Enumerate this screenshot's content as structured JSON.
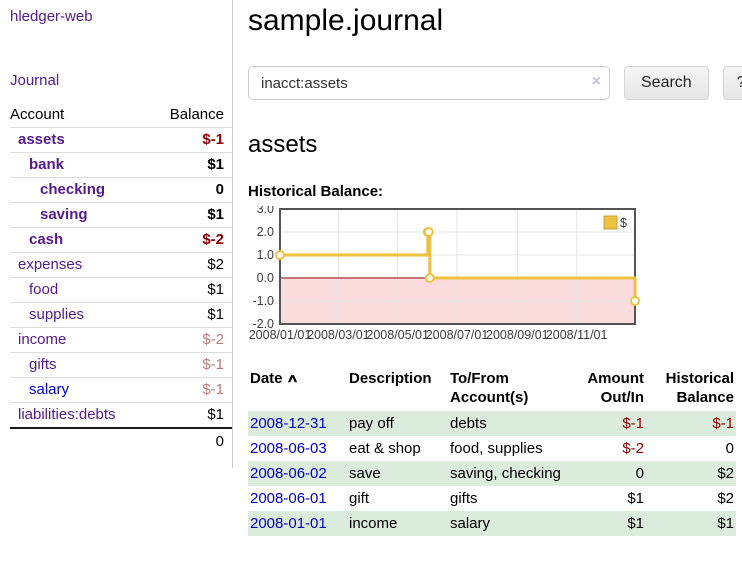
{
  "sidebar": {
    "app_title": "hledger-web",
    "journal_label": "Journal",
    "accounts_table": {
      "headers": {
        "account": "Account",
        "balance": "Balance"
      },
      "rows": [
        {
          "name": "assets",
          "balance": "$-1",
          "depth": 1,
          "bold": true,
          "link_color": "purple"
        },
        {
          "name": "bank",
          "balance": "$1",
          "depth": 2,
          "bold": true,
          "link_color": "purple"
        },
        {
          "name": "checking",
          "balance": "0",
          "depth": 3,
          "bold": true,
          "link_color": "purple"
        },
        {
          "name": "saving",
          "balance": "$1",
          "depth": 3,
          "bold": true,
          "link_color": "purple"
        },
        {
          "name": "cash",
          "balance": "$-2",
          "depth": 2,
          "bold": true,
          "link_color": "purple"
        },
        {
          "name": "expenses",
          "balance": "$2",
          "depth": 1,
          "bold": false,
          "link_color": "purple"
        },
        {
          "name": "food",
          "balance": "$1",
          "depth": 2,
          "bold": false,
          "link_color": "purple"
        },
        {
          "name": "supplies",
          "balance": "$1",
          "depth": 2,
          "bold": false,
          "link_color": "purple"
        },
        {
          "name": "income",
          "balance": "$-2",
          "depth": 1,
          "bold": false,
          "link_color": "purple"
        },
        {
          "name": "gifts",
          "balance": "$-1",
          "depth": 2,
          "bold": false,
          "link_color": "purple"
        },
        {
          "name": "salary",
          "balance": "$-1",
          "depth": 2,
          "bold": false,
          "link_color": "blue"
        },
        {
          "name": "liabilities:debts",
          "balance": "$1",
          "depth": 1,
          "bold": false,
          "link_color": "purple"
        }
      ],
      "total": "0"
    }
  },
  "main": {
    "title": "sample.journal",
    "search": {
      "value": "inacct:assets",
      "clear_icon": "×",
      "button_label": "Search",
      "help_label": "?"
    },
    "account_heading": "assets",
    "chart_label": "Historical Balance:",
    "register_table": {
      "sort_icon": "∧",
      "headers": {
        "date": "Date",
        "description": "Description",
        "accounts": "To/From Account(s)",
        "amount": "Amount Out/In",
        "balance": "Historical Balance"
      },
      "rows": [
        {
          "date": "2008-12-31",
          "description": "pay off",
          "accounts": "debts",
          "amount": "$-1",
          "balance": "$-1"
        },
        {
          "date": "2008-06-03",
          "description": "eat & shop",
          "accounts": "food, supplies",
          "amount": "$-2",
          "balance": "0"
        },
        {
          "date": "2008-06-02",
          "description": "save",
          "accounts": "saving, checking",
          "amount": "0",
          "balance": "$2"
        },
        {
          "date": "2008-06-01",
          "description": "gift",
          "accounts": "gifts",
          "amount": "$1",
          "balance": "$2"
        },
        {
          "date": "2008-01-01",
          "description": "income",
          "accounts": "salary",
          "amount": "$1",
          "balance": "$1"
        }
      ]
    }
  },
  "chart_data": {
    "type": "line",
    "title": "Historical Balance:",
    "step": true,
    "series": [
      {
        "name": "$",
        "color": "#edc240",
        "points": [
          [
            "2008-01-01",
            1
          ],
          [
            "2008-06-01",
            2
          ],
          [
            "2008-06-02",
            2
          ],
          [
            "2008-06-03",
            0
          ],
          [
            "2008-12-31",
            -1
          ]
        ]
      }
    ],
    "x_range": [
      "2008-01-01",
      "2008-12-31"
    ],
    "ylim": [
      -2,
      3
    ],
    "y_ticks": [
      3.0,
      2.0,
      1.0,
      0.0,
      -1.0,
      -2.0
    ],
    "x_ticks": [
      "2008/01/01",
      "2008/03/01",
      "2008/05/01",
      "2008/07/01",
      "2008/09/01",
      "2008/11/01"
    ],
    "grid": true,
    "legend_position": "top-right",
    "negative_region_color": "#fbdcdc",
    "zero_line_color": "#8b0000",
    "grid_color": "#e6e6e6",
    "border_color": "#545454"
  },
  "colors": {
    "link_purple": "#551a8b",
    "link_blue": "#0000cc",
    "negative_strong": "#8b0000",
    "negative_soft": "#bd7b7b",
    "row_green": "#dcecdc",
    "series_gold": "#edc240"
  }
}
